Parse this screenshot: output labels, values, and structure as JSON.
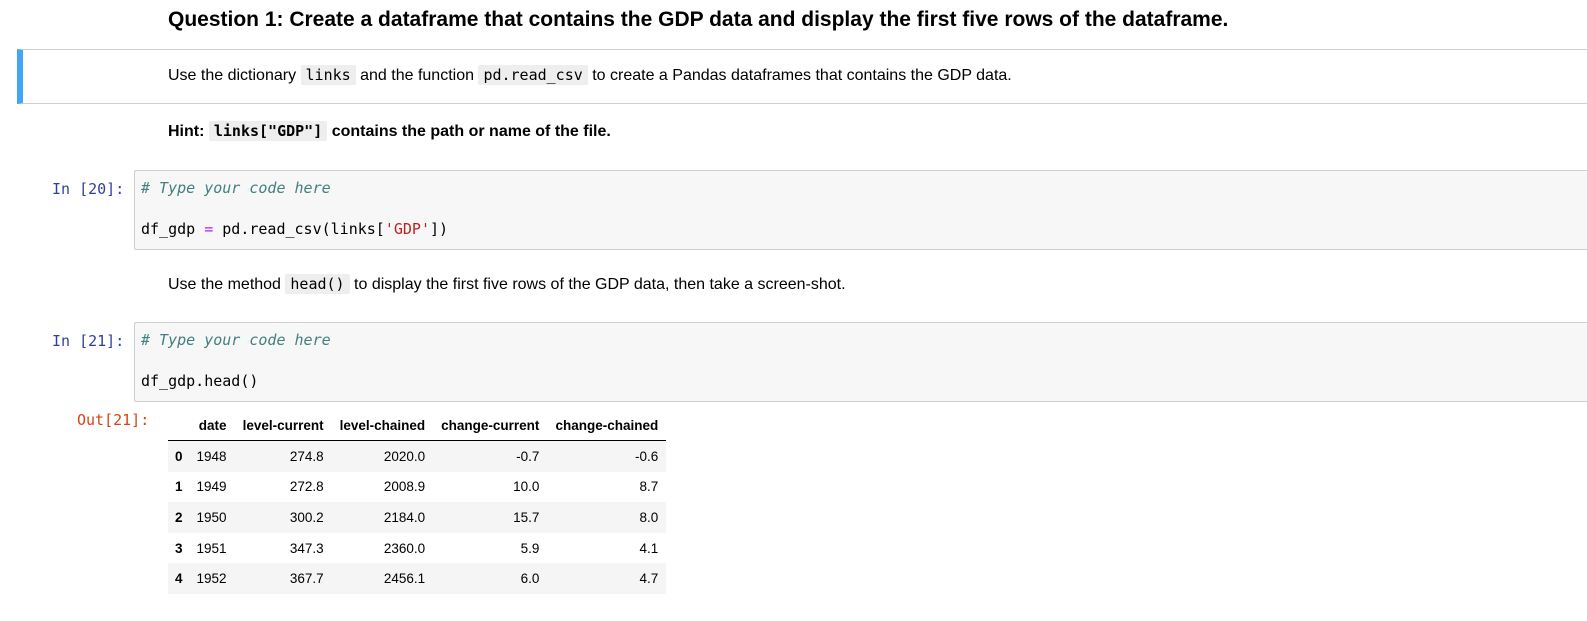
{
  "question": {
    "heading": "Question 1: Create a dataframe that contains the GDP data and display the first five rows of the dataframe."
  },
  "markdown1": {
    "text_before_code1": "Use the dictionary ",
    "code1": "links",
    "text_between": " and the function ",
    "code2": "pd.read_csv",
    "text_after": " to create a Pandas dataframes that contains the GDP data."
  },
  "hint": {
    "label": "Hint: ",
    "code": "links[\"GDP\"]",
    "text_after": " contains the path or name of the file."
  },
  "cell20": {
    "prompt": "In [20]:",
    "comment": "# Type your code here",
    "line2_a": "df_gdp ",
    "line2_op": "=",
    "line2_b": " pd.read_csv(links[",
    "line2_str": "'GDP'",
    "line2_c": "])"
  },
  "markdown2": {
    "text_before": "Use the method ",
    "code": "head()",
    "text_after": " to display the first five rows of the GDP data, then take a screen-shot."
  },
  "cell21": {
    "prompt": "In [21]:",
    "comment": "# Type your code here",
    "line2": "df_gdp.head()",
    "out_prompt": "Out[21]:"
  },
  "table": {
    "columns": [
      "date",
      "level-current",
      "level-chained",
      "change-current",
      "change-chained"
    ],
    "rows": [
      {
        "index": "0",
        "values": [
          "1948",
          "274.8",
          "2020.0",
          "-0.7",
          "-0.6"
        ]
      },
      {
        "index": "1",
        "values": [
          "1949",
          "272.8",
          "2008.9",
          "10.0",
          "8.7"
        ]
      },
      {
        "index": "2",
        "values": [
          "1950",
          "300.2",
          "2184.0",
          "15.7",
          "8.0"
        ]
      },
      {
        "index": "3",
        "values": [
          "1951",
          "347.3",
          "2360.0",
          "5.9",
          "4.1"
        ]
      },
      {
        "index": "4",
        "values": [
          "1952",
          "367.7",
          "2456.1",
          "6.0",
          "4.7"
        ]
      }
    ]
  },
  "colors": {
    "selection_bar": "#42a5f5",
    "in_prompt": "#303f9f",
    "out_prompt": "#d84315",
    "comment": "#408080",
    "string": "#ba2121",
    "operator": "#aa22ff"
  }
}
